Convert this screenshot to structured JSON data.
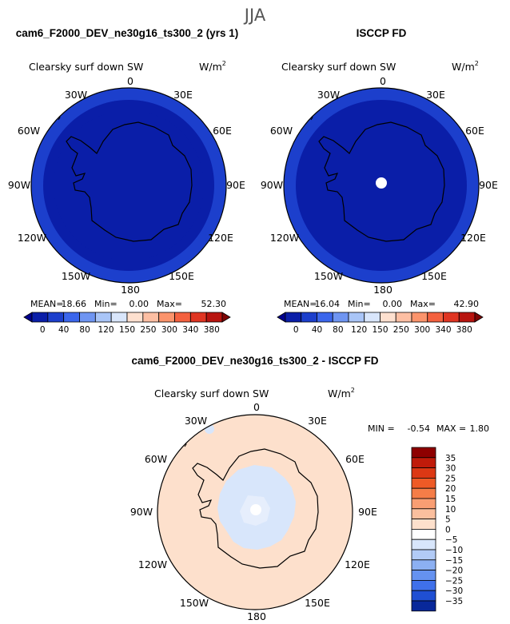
{
  "figure": {
    "season": "JJA",
    "panel1": {
      "case": "cam6_F2000_DEV_ne30g16_ts300_2 (yrs 1)",
      "variable": "Clearsky surf down SW",
      "units_base": "W/m",
      "units_exp": "2",
      "stats": {
        "mean_label": "MEAN=",
        "mean": "18.66",
        "min_label": "Min=",
        "min": "0.00",
        "max_label": "Max=",
        "max": "52.30"
      }
    },
    "panel2": {
      "case": "ISCCP FD",
      "variable": "Clearsky surf down SW",
      "units_base": "W/m",
      "units_exp": "2",
      "stats": {
        "mean_label": "MEAN=",
        "mean": "16.04",
        "min_label": "Min=",
        "min": "0.00",
        "max_label": "Max=",
        "max": "42.90"
      }
    },
    "panel3": {
      "case": "cam6_F2000_DEV_ne30g16_ts300_2 - ISCCP FD",
      "variable": "Clearsky surf down SW",
      "units_base": "W/m",
      "units_exp": "2",
      "stats": {
        "min_label": "MIN =",
        "min": "-0.54",
        "max_label": "MAX =",
        "max": "1.80"
      }
    },
    "lon_labels": [
      "0",
      "30E",
      "60E",
      "90E",
      "120E",
      "150E",
      "180",
      "150W",
      "120W",
      "90W",
      "60W",
      "30W"
    ]
  },
  "chart_data": [
    {
      "type": "heatmap",
      "title": "Clearsky surf down SW",
      "subtitle": "cam6_F2000_DEV_ne30g16_ts300_2 (yrs 1)",
      "projection": "south polar stereographic",
      "units": "W/m2",
      "mean": 18.66,
      "min": 0.0,
      "max": 52.3,
      "levels": [
        0,
        40,
        80,
        120,
        150,
        250,
        300,
        340,
        380
      ],
      "level_labels": [
        "0",
        "40",
        "80",
        "120",
        "150",
        "250",
        "300",
        "340",
        "380"
      ],
      "colors": [
        "#00008c",
        "#0a1ea8",
        "#1c3fcc",
        "#3b66ec",
        "#6f95f2",
        "#a9c5f7",
        "#d9e6fb",
        "#fde0cf",
        "#fdbfa3",
        "#fb946c",
        "#f4613f",
        "#e03522",
        "#b8140f",
        "#7d0505"
      ],
      "regions": [
        {
          "zone": "outer ring",
          "value_range": "40-80",
          "color": "#1c3fcc"
        },
        {
          "zone": "middle ring",
          "value_range": "0-40",
          "color": "#0a1ea8"
        },
        {
          "zone": "inner / Antarctica",
          "value_range": "0-40",
          "color": "#0a1ea8"
        }
      ]
    },
    {
      "type": "heatmap",
      "title": "Clearsky surf down SW",
      "subtitle": "ISCCP FD",
      "projection": "south polar stereographic",
      "units": "W/m2",
      "mean": 16.04,
      "min": 0.0,
      "max": 42.9,
      "levels": [
        0,
        40,
        80,
        120,
        150,
        250,
        300,
        340,
        380
      ],
      "level_labels": [
        "0",
        "40",
        "80",
        "120",
        "150",
        "250",
        "300",
        "340",
        "380"
      ],
      "colors": [
        "#00008c",
        "#0a1ea8",
        "#1c3fcc",
        "#3b66ec",
        "#6f95f2",
        "#a9c5f7",
        "#d9e6fb",
        "#fde0cf",
        "#fdbfa3",
        "#fb946c",
        "#f4613f",
        "#e03522",
        "#b8140f",
        "#7d0505"
      ],
      "regions": [
        {
          "zone": "outer ring",
          "value_range": "40-80",
          "color": "#1c3fcc"
        },
        {
          "zone": "inner / Antarctica",
          "value_range": "0-40",
          "color": "#0a1ea8"
        },
        {
          "zone": "pole",
          "value_range": "missing",
          "color": "#ffffff"
        }
      ]
    },
    {
      "type": "heatmap",
      "title": "Clearsky surf down SW",
      "subtitle": "cam6_F2000_DEV_ne30g16_ts300_2 - ISCCP FD",
      "projection": "south polar stereographic",
      "units": "W/m2",
      "min": -0.54,
      "max": 1.8,
      "levels": [
        -35,
        -30,
        -25,
        -20,
        -15,
        -10,
        -5,
        0,
        5,
        10,
        15,
        20,
        25,
        30,
        35
      ],
      "level_labels": [
        "35",
        "30",
        "25",
        "20",
        "15",
        "10",
        "5",
        "0",
        "−5",
        "−10",
        "−15",
        "−20",
        "−25",
        "−30",
        "−35"
      ],
      "colors_top_to_bottom": [
        "#8e0000",
        "#c01b0a",
        "#dc3814",
        "#ee5a26",
        "#f57d48",
        "#f99e73",
        "#fbbf9e",
        "#fde0cc",
        "#ffffff",
        "#d8e6fb",
        "#b2cbf6",
        "#8cb0f2",
        "#6592f0",
        "#3f70ea",
        "#1f4fd3",
        "#08289a"
      ],
      "regions": [
        {
          "zone": "ocean",
          "value_range": "0 to 5",
          "color": "#fde0cc"
        },
        {
          "zone": "Antarctic interior",
          "value_range": "-5 to 0",
          "color": "#d8e6fb"
        },
        {
          "zone": "pole",
          "value_range": "missing",
          "color": "#ffffff"
        }
      ]
    }
  ]
}
